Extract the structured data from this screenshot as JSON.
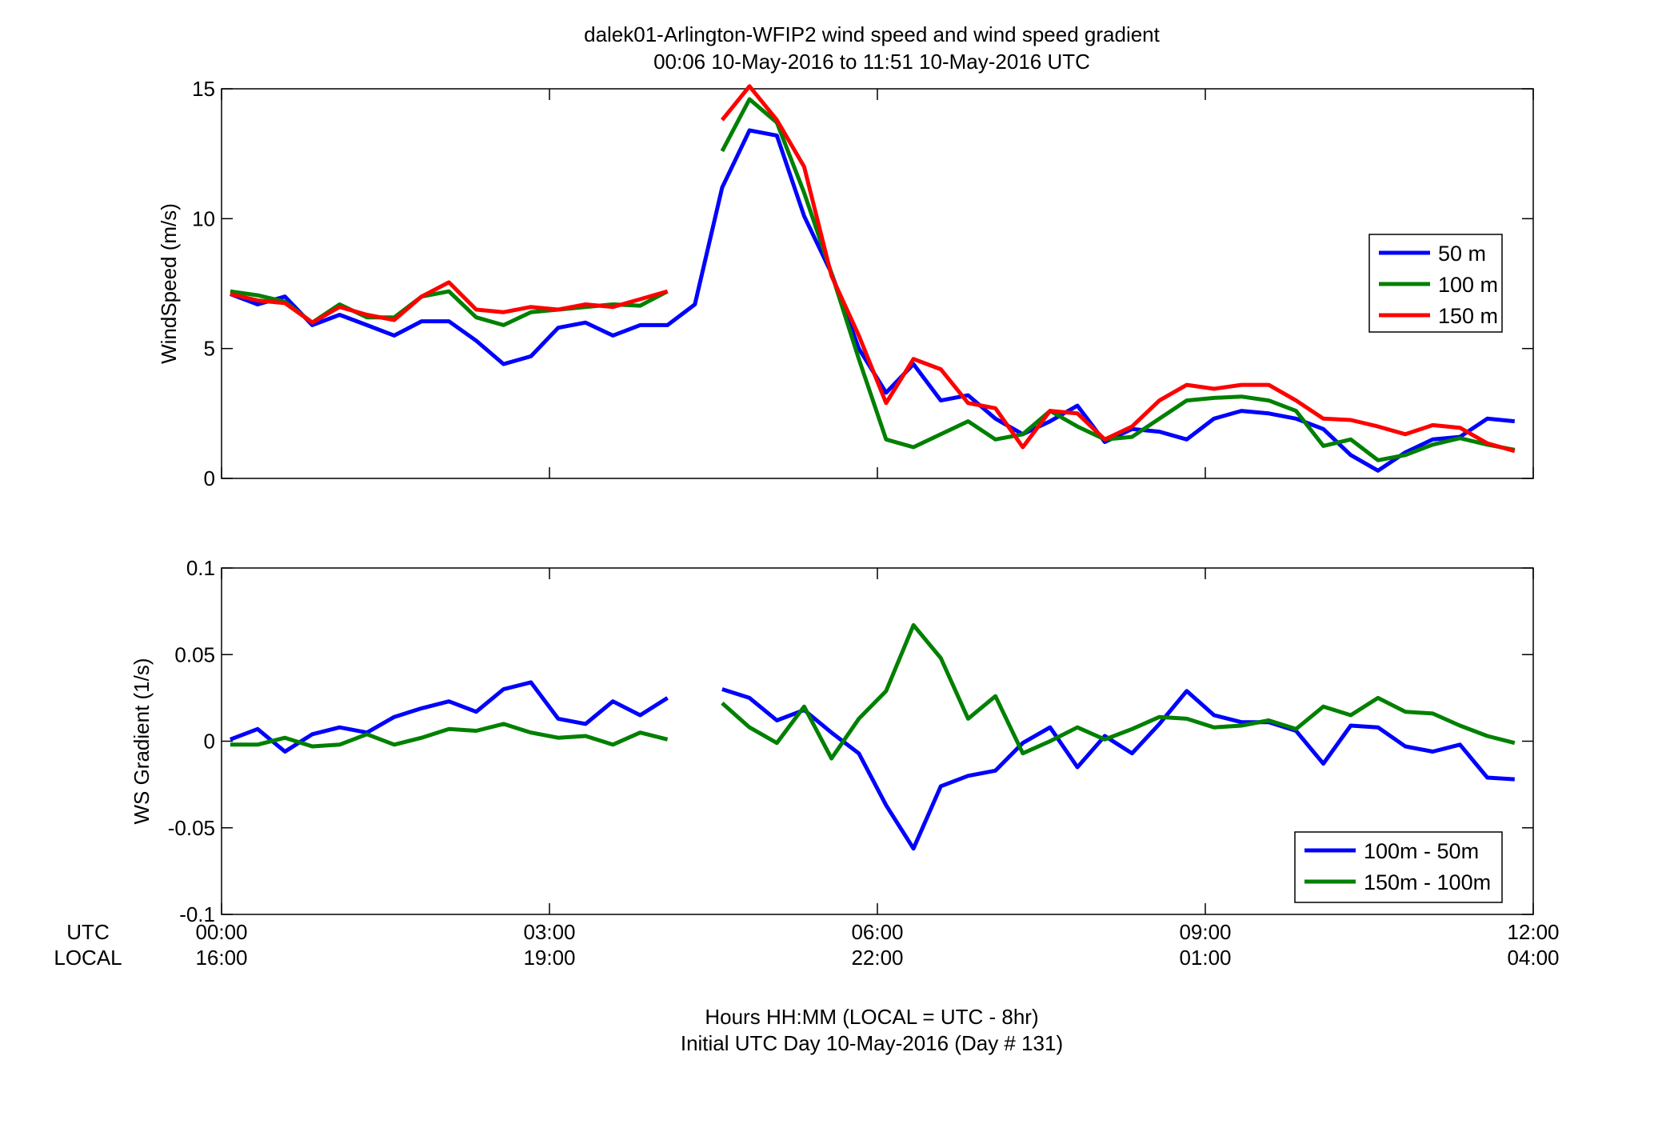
{
  "chart_title": "dalek01-Arlington-WFIP2  wind speed and wind speed gradient",
  "chart_subtitle": "00:06 10-May-2016 to 11:51 10-May-2016  UTC",
  "row_labels": {
    "utc": "UTC",
    "local": "LOCAL"
  },
  "xlabel_line1": "Hours HH:MM  (LOCAL = UTC - 8hr)",
  "xlabel_line2": "Initial UTC Day 10-May-2016 (Day # 131)",
  "colors": {
    "blue": "#0000ff",
    "green": "#008000",
    "red": "#ff0000"
  },
  "chart_data": [
    {
      "type": "line",
      "ylabel": "WindSpeed (m/s)",
      "xlim": [
        0,
        12
      ],
      "ylim": [
        0,
        15
      ],
      "yticks": [
        0,
        5,
        10,
        15
      ],
      "ytick_labels": [
        "0",
        "5",
        "10",
        "15"
      ],
      "xticks": [
        0,
        3,
        6,
        9,
        12
      ],
      "xtick_labels_utc": [
        "00:00",
        "03:00",
        "06:00",
        "09:00",
        "12:00"
      ],
      "xtick_labels_local": [
        "16:00",
        "19:00",
        "22:00",
        "01:00",
        "04:00"
      ],
      "legend_position": "right",
      "series": [
        {
          "name": "50 m",
          "color": "#0000ff",
          "points": [
            [
              0.08,
              7.1
            ],
            [
              0.33,
              6.7
            ],
            [
              0.58,
              7.0
            ],
            [
              0.83,
              5.9
            ],
            [
              1.08,
              6.3
            ],
            [
              1.33,
              5.9
            ],
            [
              1.58,
              5.5
            ],
            [
              1.83,
              6.05
            ],
            [
              2.08,
              6.05
            ],
            [
              2.33,
              5.3
            ],
            [
              2.58,
              4.4
            ],
            [
              2.83,
              4.7
            ],
            [
              3.08,
              5.8
            ],
            [
              3.33,
              6.0
            ],
            [
              3.58,
              5.5
            ],
            [
              3.83,
              5.9
            ],
            [
              4.08,
              5.9
            ],
            [
              4.33,
              6.7
            ],
            [
              4.58,
              11.2
            ],
            [
              4.83,
              13.4
            ],
            [
              5.08,
              13.2
            ],
            [
              5.33,
              10.1
            ],
            [
              5.58,
              7.9
            ],
            [
              5.83,
              5.0
            ],
            [
              6.08,
              3.3
            ],
            [
              6.33,
              4.4
            ],
            [
              6.58,
              3.0
            ],
            [
              6.83,
              3.2
            ],
            [
              7.08,
              2.3
            ],
            [
              7.33,
              1.7
            ],
            [
              7.58,
              2.2
            ],
            [
              7.83,
              2.8
            ],
            [
              8.08,
              1.4
            ],
            [
              8.33,
              1.9
            ],
            [
              8.58,
              1.8
            ],
            [
              8.83,
              1.5
            ],
            [
              9.08,
              2.3
            ],
            [
              9.33,
              2.6
            ],
            [
              9.58,
              2.5
            ],
            [
              9.83,
              2.3
            ],
            [
              10.08,
              1.9
            ],
            [
              10.33,
              0.9
            ],
            [
              10.58,
              0.3
            ],
            [
              10.83,
              1.0
            ],
            [
              11.08,
              1.5
            ],
            [
              11.33,
              1.6
            ],
            [
              11.58,
              2.3
            ],
            [
              11.83,
              2.2
            ]
          ]
        },
        {
          "name": "100 m",
          "color": "#008000",
          "points": [
            [
              0.08,
              7.2
            ],
            [
              0.33,
              7.05
            ],
            [
              0.58,
              6.8
            ],
            [
              0.83,
              6.0
            ],
            [
              1.08,
              6.7
            ],
            [
              1.33,
              6.2
            ],
            [
              1.58,
              6.2
            ],
            [
              1.83,
              7.0
            ],
            [
              2.08,
              7.2
            ],
            [
              2.33,
              6.2
            ],
            [
              2.58,
              5.9
            ],
            [
              2.83,
              6.4
            ],
            [
              3.08,
              6.5
            ],
            [
              3.33,
              6.6
            ],
            [
              3.58,
              6.7
            ],
            [
              3.83,
              6.65
            ],
            [
              4.08,
              7.2
            ],
            null,
            [
              4.58,
              12.6
            ],
            [
              4.83,
              14.6
            ],
            [
              5.08,
              13.7
            ],
            [
              5.33,
              11.0
            ],
            [
              5.58,
              7.9
            ],
            [
              5.83,
              4.6
            ],
            [
              6.08,
              1.5
            ],
            [
              6.33,
              1.2
            ],
            [
              6.58,
              1.7
            ],
            [
              6.83,
              2.2
            ],
            [
              7.08,
              1.5
            ],
            [
              7.33,
              1.7
            ],
            [
              7.58,
              2.6
            ],
            [
              7.83,
              2.0
            ],
            [
              8.08,
              1.5
            ],
            [
              8.33,
              1.6
            ],
            [
              8.58,
              2.3
            ],
            [
              8.83,
              3.0
            ],
            [
              9.08,
              3.1
            ],
            [
              9.33,
              3.15
            ],
            [
              9.58,
              3.0
            ],
            [
              9.83,
              2.6
            ],
            [
              10.08,
              1.25
            ],
            [
              10.33,
              1.5
            ],
            [
              10.58,
              0.7
            ],
            [
              10.83,
              0.9
            ],
            [
              11.08,
              1.3
            ],
            [
              11.33,
              1.55
            ],
            [
              11.58,
              1.3
            ],
            [
              11.83,
              1.1
            ]
          ]
        },
        {
          "name": "150 m",
          "color": "#ff0000",
          "points": [
            [
              0.08,
              7.1
            ],
            [
              0.33,
              6.85
            ],
            [
              0.58,
              6.75
            ],
            [
              0.83,
              6.0
            ],
            [
              1.08,
              6.6
            ],
            [
              1.33,
              6.3
            ],
            [
              1.58,
              6.1
            ],
            [
              1.83,
              7.0
            ],
            [
              2.08,
              7.55
            ],
            [
              2.33,
              6.5
            ],
            [
              2.58,
              6.4
            ],
            [
              2.83,
              6.6
            ],
            [
              3.08,
              6.5
            ],
            [
              3.33,
              6.7
            ],
            [
              3.58,
              6.6
            ],
            [
              3.83,
              6.9
            ],
            [
              4.08,
              7.2
            ],
            null,
            [
              4.58,
              13.8
            ],
            [
              4.83,
              15.1
            ],
            [
              5.08,
              13.8
            ],
            [
              5.33,
              12.0
            ],
            [
              5.58,
              7.8
            ],
            [
              5.83,
              5.5
            ],
            [
              6.08,
              2.9
            ],
            [
              6.33,
              4.6
            ],
            [
              6.58,
              4.2
            ],
            [
              6.83,
              2.9
            ],
            [
              7.08,
              2.7
            ],
            [
              7.33,
              1.2
            ],
            [
              7.58,
              2.6
            ],
            [
              7.83,
              2.5
            ],
            [
              8.08,
              1.5
            ],
            [
              8.33,
              2.0
            ],
            [
              8.58,
              3.0
            ],
            [
              8.83,
              3.6
            ],
            [
              9.08,
              3.45
            ],
            [
              9.33,
              3.6
            ],
            [
              9.58,
              3.6
            ],
            [
              9.83,
              3.0
            ],
            [
              10.08,
              2.3
            ],
            [
              10.33,
              2.25
            ],
            [
              10.58,
              2.0
            ],
            [
              10.83,
              1.7
            ],
            [
              11.08,
              2.05
            ],
            [
              11.33,
              1.95
            ],
            [
              11.58,
              1.35
            ],
            [
              11.83,
              1.05
            ]
          ]
        }
      ]
    },
    {
      "type": "line",
      "ylabel": "WS Gradient (1/s)",
      "xlim": [
        0,
        12
      ],
      "ylim": [
        -0.1,
        0.1
      ],
      "yticks": [
        -0.1,
        -0.05,
        0,
        0.05,
        0.1
      ],
      "ytick_labels": [
        "-0.1",
        "-0.05",
        "0",
        "0.05",
        "0.1"
      ],
      "xticks": [
        0,
        3,
        6,
        9,
        12
      ],
      "legend_position": "bottom-right",
      "series": [
        {
          "name": "100m - 50m",
          "color": "#0000ff",
          "points": [
            [
              0.08,
              0.001
            ],
            [
              0.33,
              0.007
            ],
            [
              0.58,
              -0.006
            ],
            [
              0.83,
              0.004
            ],
            [
              1.08,
              0.008
            ],
            [
              1.33,
              0.005
            ],
            [
              1.58,
              0.014
            ],
            [
              1.83,
              0.019
            ],
            [
              2.08,
              0.023
            ],
            [
              2.33,
              0.017
            ],
            [
              2.58,
              0.03
            ],
            [
              2.83,
              0.034
            ],
            [
              3.08,
              0.013
            ],
            [
              3.33,
              0.01
            ],
            [
              3.58,
              0.023
            ],
            [
              3.83,
              0.015
            ],
            [
              4.08,
              0.025
            ],
            null,
            [
              4.58,
              0.03
            ],
            [
              4.83,
              0.025
            ],
            [
              5.08,
              0.012
            ],
            [
              5.33,
              0.018
            ],
            [
              5.58,
              0.005
            ],
            [
              5.83,
              -0.007
            ],
            [
              6.08,
              -0.037
            ],
            [
              6.33,
              -0.062
            ],
            [
              6.58,
              -0.026
            ],
            [
              6.83,
              -0.02
            ],
            [
              7.08,
              -0.017
            ],
            [
              7.33,
              -0.001
            ],
            [
              7.58,
              0.008
            ],
            [
              7.83,
              -0.015
            ],
            [
              8.08,
              0.003
            ],
            [
              8.33,
              -0.007
            ],
            [
              8.58,
              0.01
            ],
            [
              8.83,
              0.029
            ],
            [
              9.08,
              0.015
            ],
            [
              9.33,
              0.011
            ],
            [
              9.58,
              0.011
            ],
            [
              9.83,
              0.006
            ],
            [
              10.08,
              -0.013
            ],
            [
              10.33,
              0.009
            ],
            [
              10.58,
              0.008
            ],
            [
              10.83,
              -0.003
            ],
            [
              11.08,
              -0.006
            ],
            [
              11.33,
              -0.002
            ],
            [
              11.58,
              -0.021
            ],
            [
              11.83,
              -0.022
            ]
          ]
        },
        {
          "name": "150m - 100m",
          "color": "#008000",
          "points": [
            [
              0.08,
              -0.002
            ],
            [
              0.33,
              -0.002
            ],
            [
              0.58,
              0.002
            ],
            [
              0.83,
              -0.003
            ],
            [
              1.08,
              -0.002
            ],
            [
              1.33,
              0.004
            ],
            [
              1.58,
              -0.002
            ],
            [
              1.83,
              0.002
            ],
            [
              2.08,
              0.007
            ],
            [
              2.33,
              0.006
            ],
            [
              2.58,
              0.01
            ],
            [
              2.83,
              0.005
            ],
            [
              3.08,
              0.002
            ],
            [
              3.33,
              0.003
            ],
            [
              3.58,
              -0.002
            ],
            [
              3.83,
              0.005
            ],
            [
              4.08,
              0.001
            ],
            null,
            [
              4.58,
              0.022
            ],
            [
              4.83,
              0.008
            ],
            [
              5.08,
              -0.001
            ],
            [
              5.33,
              0.02
            ],
            [
              5.58,
              -0.01
            ],
            [
              5.83,
              0.013
            ],
            [
              6.08,
              0.029
            ],
            [
              6.33,
              0.067
            ],
            [
              6.58,
              0.048
            ],
            [
              6.83,
              0.013
            ],
            [
              7.08,
              0.026
            ],
            [
              7.33,
              -0.007
            ],
            [
              7.58,
              0.0
            ],
            [
              7.83,
              0.008
            ],
            [
              8.08,
              0.001
            ],
            [
              8.33,
              0.007
            ],
            [
              8.58,
              0.014
            ],
            [
              8.83,
              0.013
            ],
            [
              9.08,
              0.008
            ],
            [
              9.33,
              0.009
            ],
            [
              9.58,
              0.012
            ],
            [
              9.83,
              0.007
            ],
            [
              10.08,
              0.02
            ],
            [
              10.33,
              0.015
            ],
            [
              10.58,
              0.025
            ],
            [
              10.83,
              0.017
            ],
            [
              11.08,
              0.016
            ],
            [
              11.33,
              0.009
            ],
            [
              11.58,
              0.003
            ],
            [
              11.83,
              -0.001
            ]
          ]
        }
      ]
    }
  ]
}
